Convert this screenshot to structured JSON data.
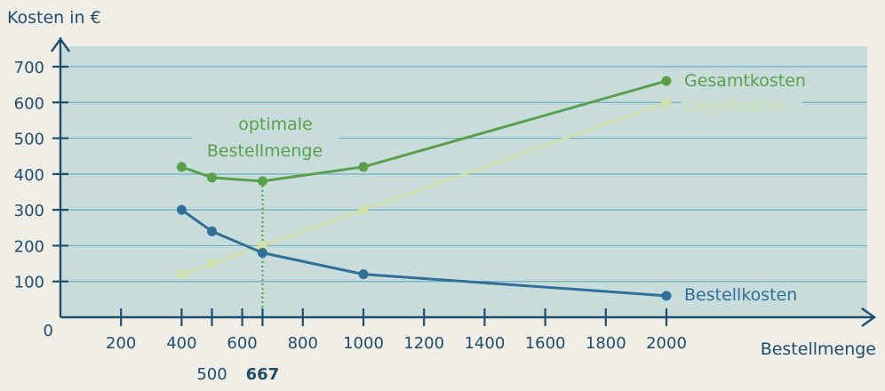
{
  "chart_data": {
    "type": "line",
    "ylabel": "Kosten in €",
    "xlabel": "Bestellmenge",
    "xlim": [
      0,
      2000
    ],
    "ylim": [
      0,
      700
    ],
    "x_ticks": [
      200,
      400,
      600,
      800,
      1000,
      1200,
      1400,
      1600,
      1800,
      2000
    ],
    "x_ticks_extra": [
      500,
      667
    ],
    "y_ticks": [
      100,
      200,
      300,
      400,
      500,
      600,
      700
    ],
    "origin_label": "0",
    "grid": true,
    "series": [
      {
        "name": "Gesamtkosten",
        "color": "#5aa04a",
        "points": [
          [
            400,
            420
          ],
          [
            500,
            390
          ],
          [
            667,
            380
          ],
          [
            1000,
            420
          ],
          [
            2000,
            660
          ]
        ]
      },
      {
        "name": "Lagerkosten",
        "color": "#cfe0a9",
        "points": [
          [
            400,
            120
          ],
          [
            500,
            150
          ],
          [
            667,
            200
          ],
          [
            1000,
            300
          ],
          [
            2000,
            600
          ]
        ]
      },
      {
        "name": "Bestellkosten",
        "color": "#2f6f98",
        "points": [
          [
            400,
            300
          ],
          [
            500,
            240
          ],
          [
            667,
            180
          ],
          [
            1000,
            120
          ],
          [
            2000,
            60
          ]
        ]
      }
    ],
    "annotation": {
      "lines": [
        "optimale",
        "Bestellmenge"
      ],
      "x": 667,
      "color": "#5aa04a"
    }
  }
}
